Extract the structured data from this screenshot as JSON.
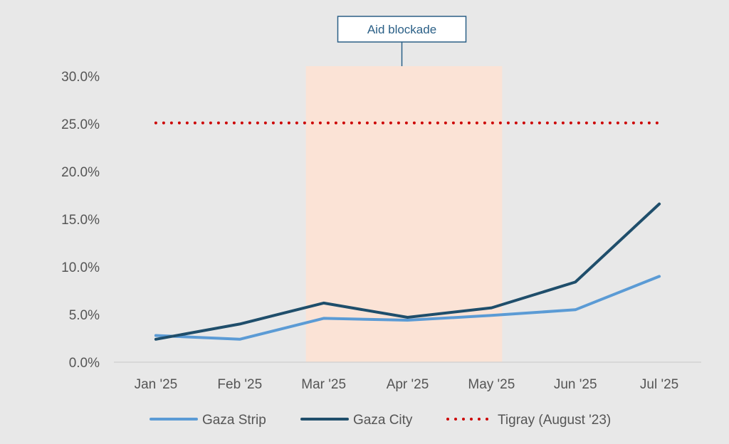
{
  "chart_data": {
    "type": "line",
    "title": "",
    "xlabel": "",
    "ylabel": "",
    "categories": [
      "Jan '25",
      "Feb '25",
      "Mar '25",
      "Apr '25",
      "May '25",
      "Jun '25",
      "Jul '25"
    ],
    "ylim": [
      0,
      30
    ],
    "yticks": [
      0,
      5,
      10,
      15,
      20,
      25,
      30
    ],
    "ytick_labels": [
      "0.0%",
      "5.0%",
      "10.0%",
      "15.0%",
      "20.0%",
      "25.0%",
      "30.0%"
    ],
    "grid": false,
    "legend_position": "bottom",
    "series": [
      {
        "name": "Gaza Strip",
        "values": [
          2.8,
          2.4,
          4.6,
          4.4,
          4.9,
          5.5,
          9.0
        ],
        "color": "#5b9bd5",
        "style": "solid"
      },
      {
        "name": "Gaza City",
        "values": [
          2.4,
          4.0,
          6.2,
          4.7,
          5.7,
          8.4,
          16.6
        ],
        "color": "#1f4e6b",
        "style": "solid"
      },
      {
        "name": "Tigray (August '23)",
        "values": [
          25.1,
          25.1,
          25.1,
          25.1,
          25.1,
          25.1,
          25.1
        ],
        "color": "#cc0000",
        "style": "dotted"
      }
    ],
    "annotations": [
      {
        "label": "Aid blockade",
        "from_category": "Mar '25",
        "to_category": "May '25",
        "fill": "#fbe3d6"
      }
    ]
  }
}
